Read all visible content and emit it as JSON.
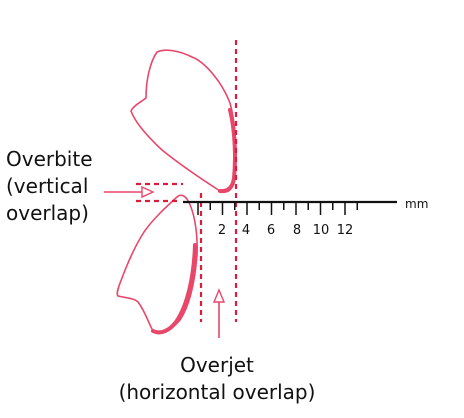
{
  "labels": {
    "overbite_line1": "Overbite",
    "overbite_line2": "(vertical",
    "overbite_line3": "overlap)",
    "overjet_line1": "Overjet",
    "overjet_line2": "(horizontal overlap)"
  },
  "scale": {
    "unit": "mm",
    "tick_labels": [
      "2",
      "4",
      "6",
      "8",
      "10",
      "12"
    ]
  },
  "colors": {
    "tooth": "#e8476a",
    "dashed": "#d81e3c",
    "ruler": "#111111",
    "text": "#111111"
  }
}
